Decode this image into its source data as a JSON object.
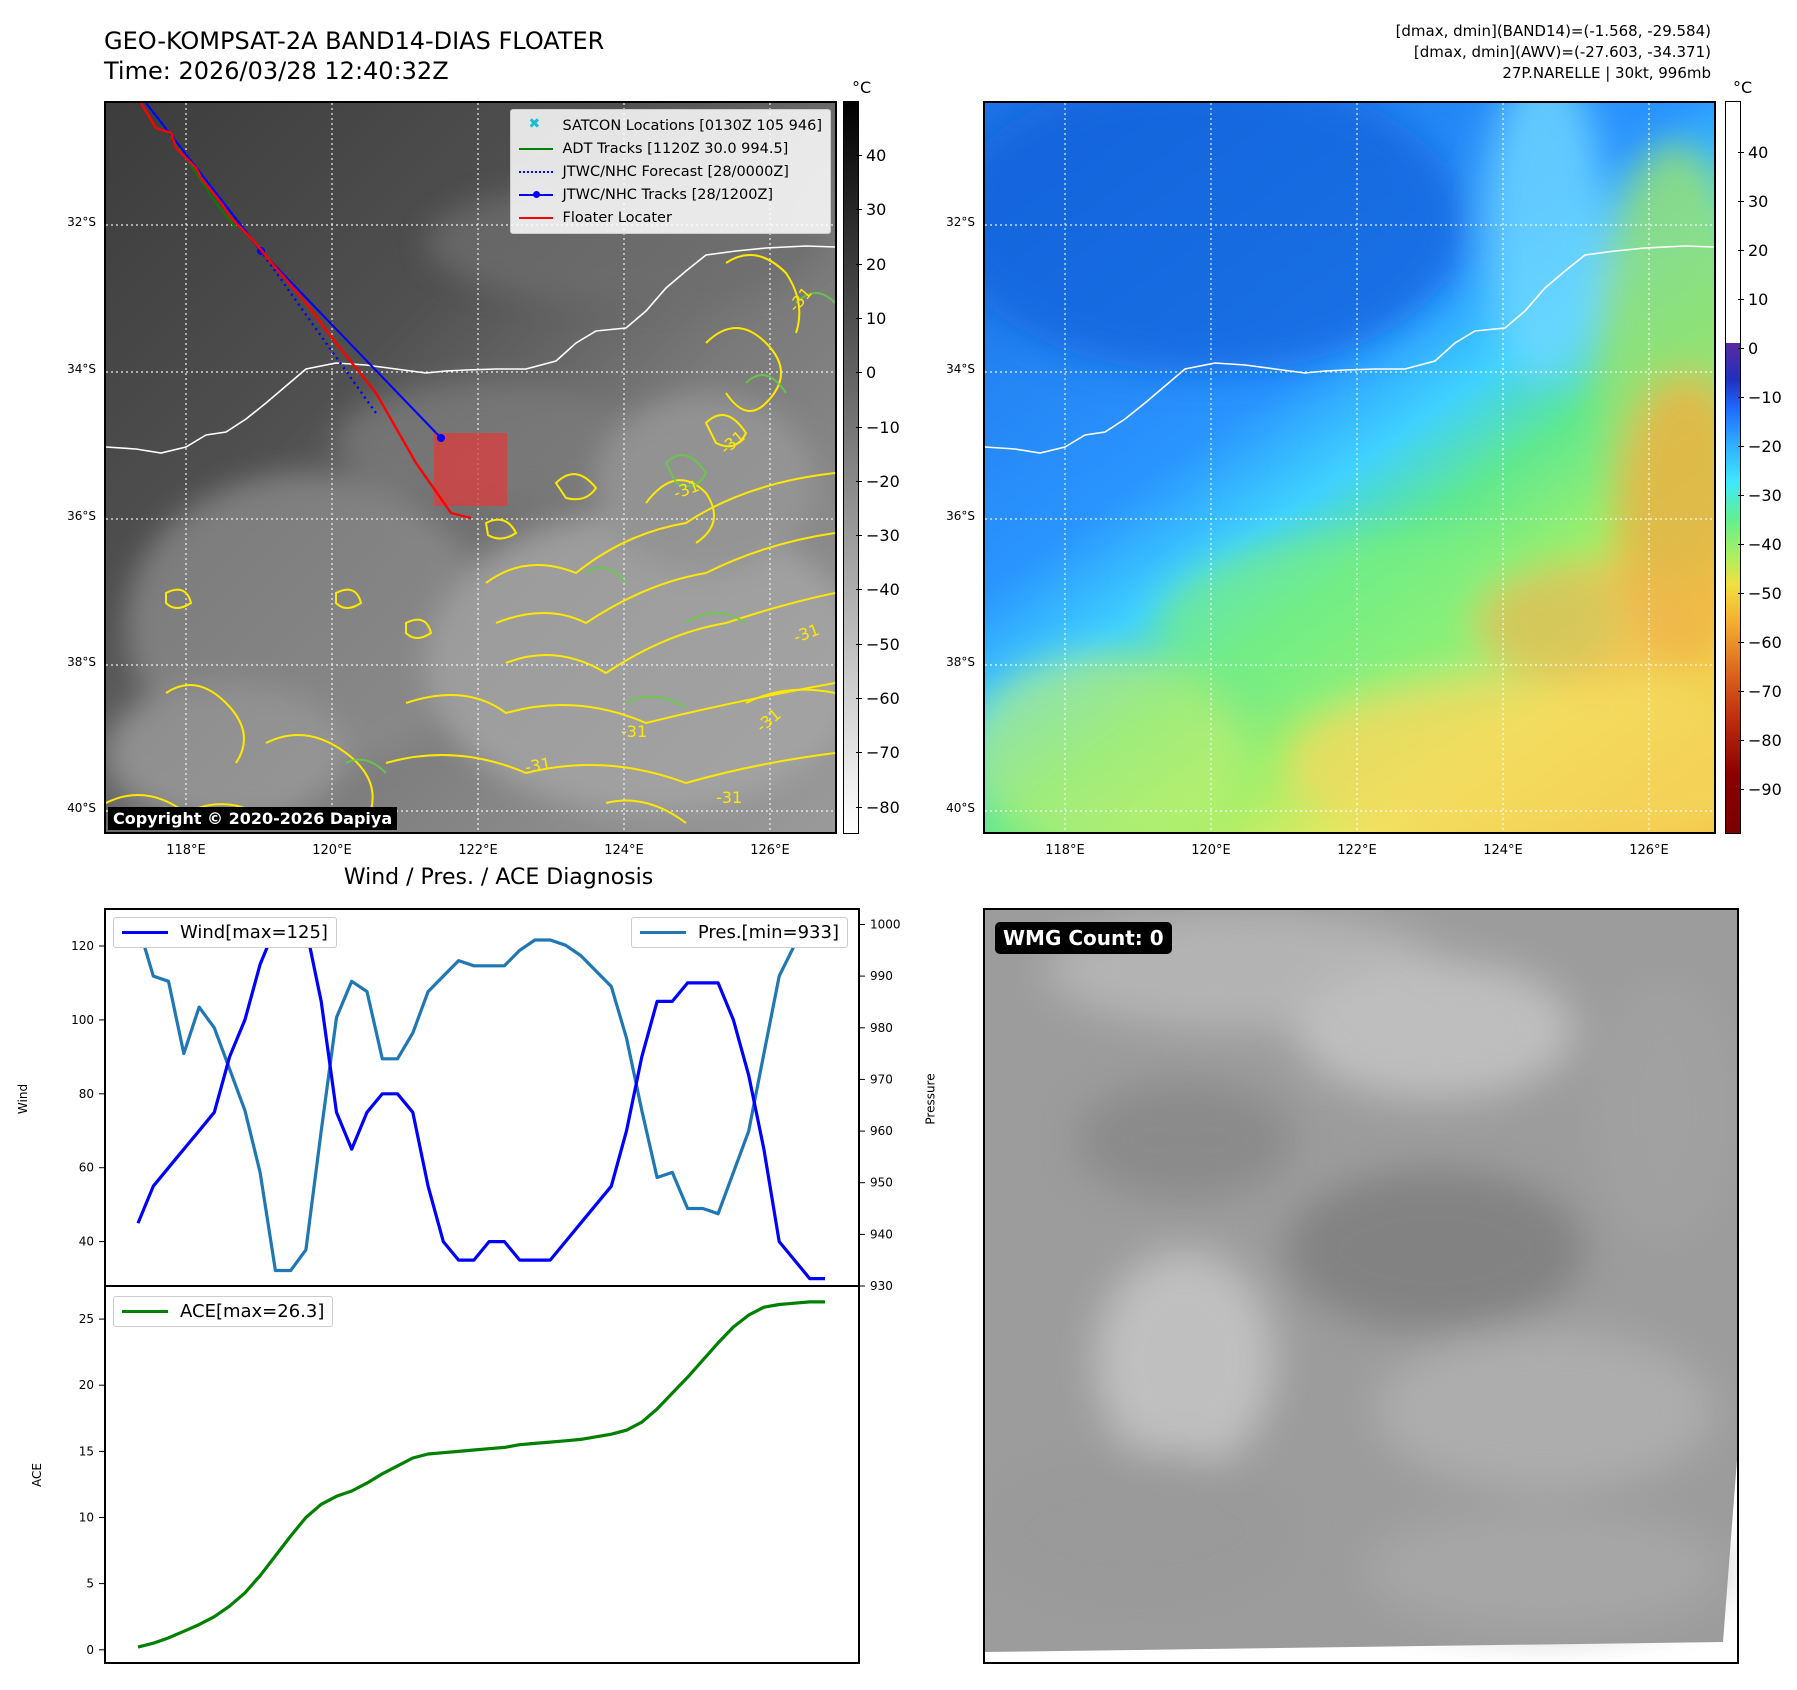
{
  "header": {
    "title": "GEO-KOMPSAT-2A BAND14-DIAS FLOATER",
    "time": "Time: 2026/03/28 12:40:32Z",
    "info_line1": "[dmax, dmin](BAND14)=(-1.568, -29.584)",
    "info_line2": "[dmax, dmin](AWV)=(-27.603, -34.371)",
    "info_line3": "27P.NARELLE | 30kt, 996mb"
  },
  "map": {
    "lat_labels": [
      "32°S",
      "34°S",
      "36°S",
      "38°S",
      "40°S"
    ],
    "lon_labels": [
      "118°E",
      "120°E",
      "122°E",
      "124°E",
      "126°E"
    ],
    "legend": [
      {
        "label": "SATCON Locations [0130Z 105 946]",
        "color": "#17becf",
        "style": "x"
      },
      {
        "label": "ADT Tracks [1120Z 30.0 994.5]",
        "color": "#008000",
        "style": "line"
      },
      {
        "label": "JTWC/NHC Forecast [28/0000Z]",
        "color": "#0000ff",
        "style": "dotted"
      },
      {
        "label": "JTWC/NHC Tracks [28/1200Z]",
        "color": "#0000ff",
        "style": "line-dot"
      },
      {
        "label": "Floater Locater",
        "color": "#ff0000",
        "style": "line"
      }
    ],
    "copyright": "Copyright © 2020-2026 Dapiya",
    "contour_labels": [
      "-31",
      "-31",
      "-31",
      "-31",
      "-31",
      "-31",
      "-31",
      "-31"
    ],
    "colorbar_left": {
      "unit": "°C",
      "ticks": [
        "40",
        "30",
        "20",
        "10",
        "0",
        "−10",
        "−20",
        "−30",
        "−40",
        "−50",
        "−60",
        "−70",
        "−80"
      ]
    },
    "colorbar_right": {
      "unit": "°C",
      "ticks": [
        "40",
        "30",
        "20",
        "10",
        "0",
        "−10",
        "−20",
        "−30",
        "−40",
        "−50",
        "−60",
        "−70",
        "−80",
        "−90"
      ]
    }
  },
  "diagnosis": {
    "title": "Wind / Pres. / ACE Diagnosis",
    "wind_label": "Wind",
    "pressure_label": "Pressure",
    "ace_label": "ACE",
    "wind_legend": "Wind[max=125]",
    "pres_legend": "Pres.[min=933]",
    "ace_legend": "ACE[max=26.3]",
    "wind_ticks": [
      "40",
      "60",
      "80",
      "100",
      "120"
    ],
    "pres_ticks": [
      "930",
      "940",
      "950",
      "960",
      "970",
      "980",
      "990",
      "1000"
    ],
    "ace_ticks": [
      "0",
      "5",
      "10",
      "15",
      "20",
      "25"
    ],
    "wind_color": "#0000ff",
    "pres_color": "#1f77b4",
    "ace_color": "#008000"
  },
  "wmg": {
    "label": "WMG Count: 0"
  },
  "chart_data": [
    {
      "type": "line",
      "title": "Wind / Pres. / ACE Diagnosis",
      "ylabel": "Wind",
      "ylim": [
        28,
        130
      ],
      "series": [
        {
          "name": "Wind[max=125]",
          "values": [
            45,
            55,
            60,
            65,
            70,
            75,
            90,
            100,
            115,
            125,
            125,
            125,
            105,
            75,
            65,
            75,
            80,
            80,
            75,
            55,
            40,
            35,
            35,
            40,
            40,
            35,
            35,
            35,
            40,
            45,
            50,
            55,
            70,
            90,
            105,
            105,
            110,
            110,
            110,
            100,
            85,
            65,
            40,
            35,
            30,
            30
          ]
        }
      ]
    },
    {
      "type": "line",
      "ylabel": "Pressure",
      "ylim": [
        930,
        1003
      ],
      "series": [
        {
          "name": "Pres.[min=933]",
          "values": [
            1000,
            990,
            989,
            975,
            984,
            980,
            972,
            964,
            952,
            933,
            933,
            937,
            960,
            982,
            989,
            987,
            974,
            974,
            979,
            987,
            990,
            993,
            992,
            992,
            992,
            995,
            997,
            997,
            996,
            994,
            991,
            988,
            978,
            964,
            951,
            952,
            945,
            945,
            944,
            952,
            960,
            975,
            990,
            996,
            997,
            997
          ]
        }
      ]
    },
    {
      "type": "line",
      "ylabel": "ACE",
      "ylim": [
        -1,
        27.5
      ],
      "series": [
        {
          "name": "ACE[max=26.3]",
          "values": [
            0.2,
            0.5,
            0.9,
            1.4,
            1.9,
            2.5,
            3.3,
            4.3,
            5.6,
            7.1,
            8.6,
            10.0,
            11.0,
            11.6,
            12.0,
            12.6,
            13.3,
            13.9,
            14.5,
            14.8,
            14.9,
            15.0,
            15.1,
            15.2,
            15.3,
            15.5,
            15.6,
            15.7,
            15.8,
            15.9,
            16.1,
            16.3,
            16.6,
            17.2,
            18.2,
            19.4,
            20.6,
            21.9,
            23.2,
            24.4,
            25.3,
            25.9,
            26.1,
            26.2,
            26.3,
            26.3
          ]
        }
      ]
    }
  ]
}
